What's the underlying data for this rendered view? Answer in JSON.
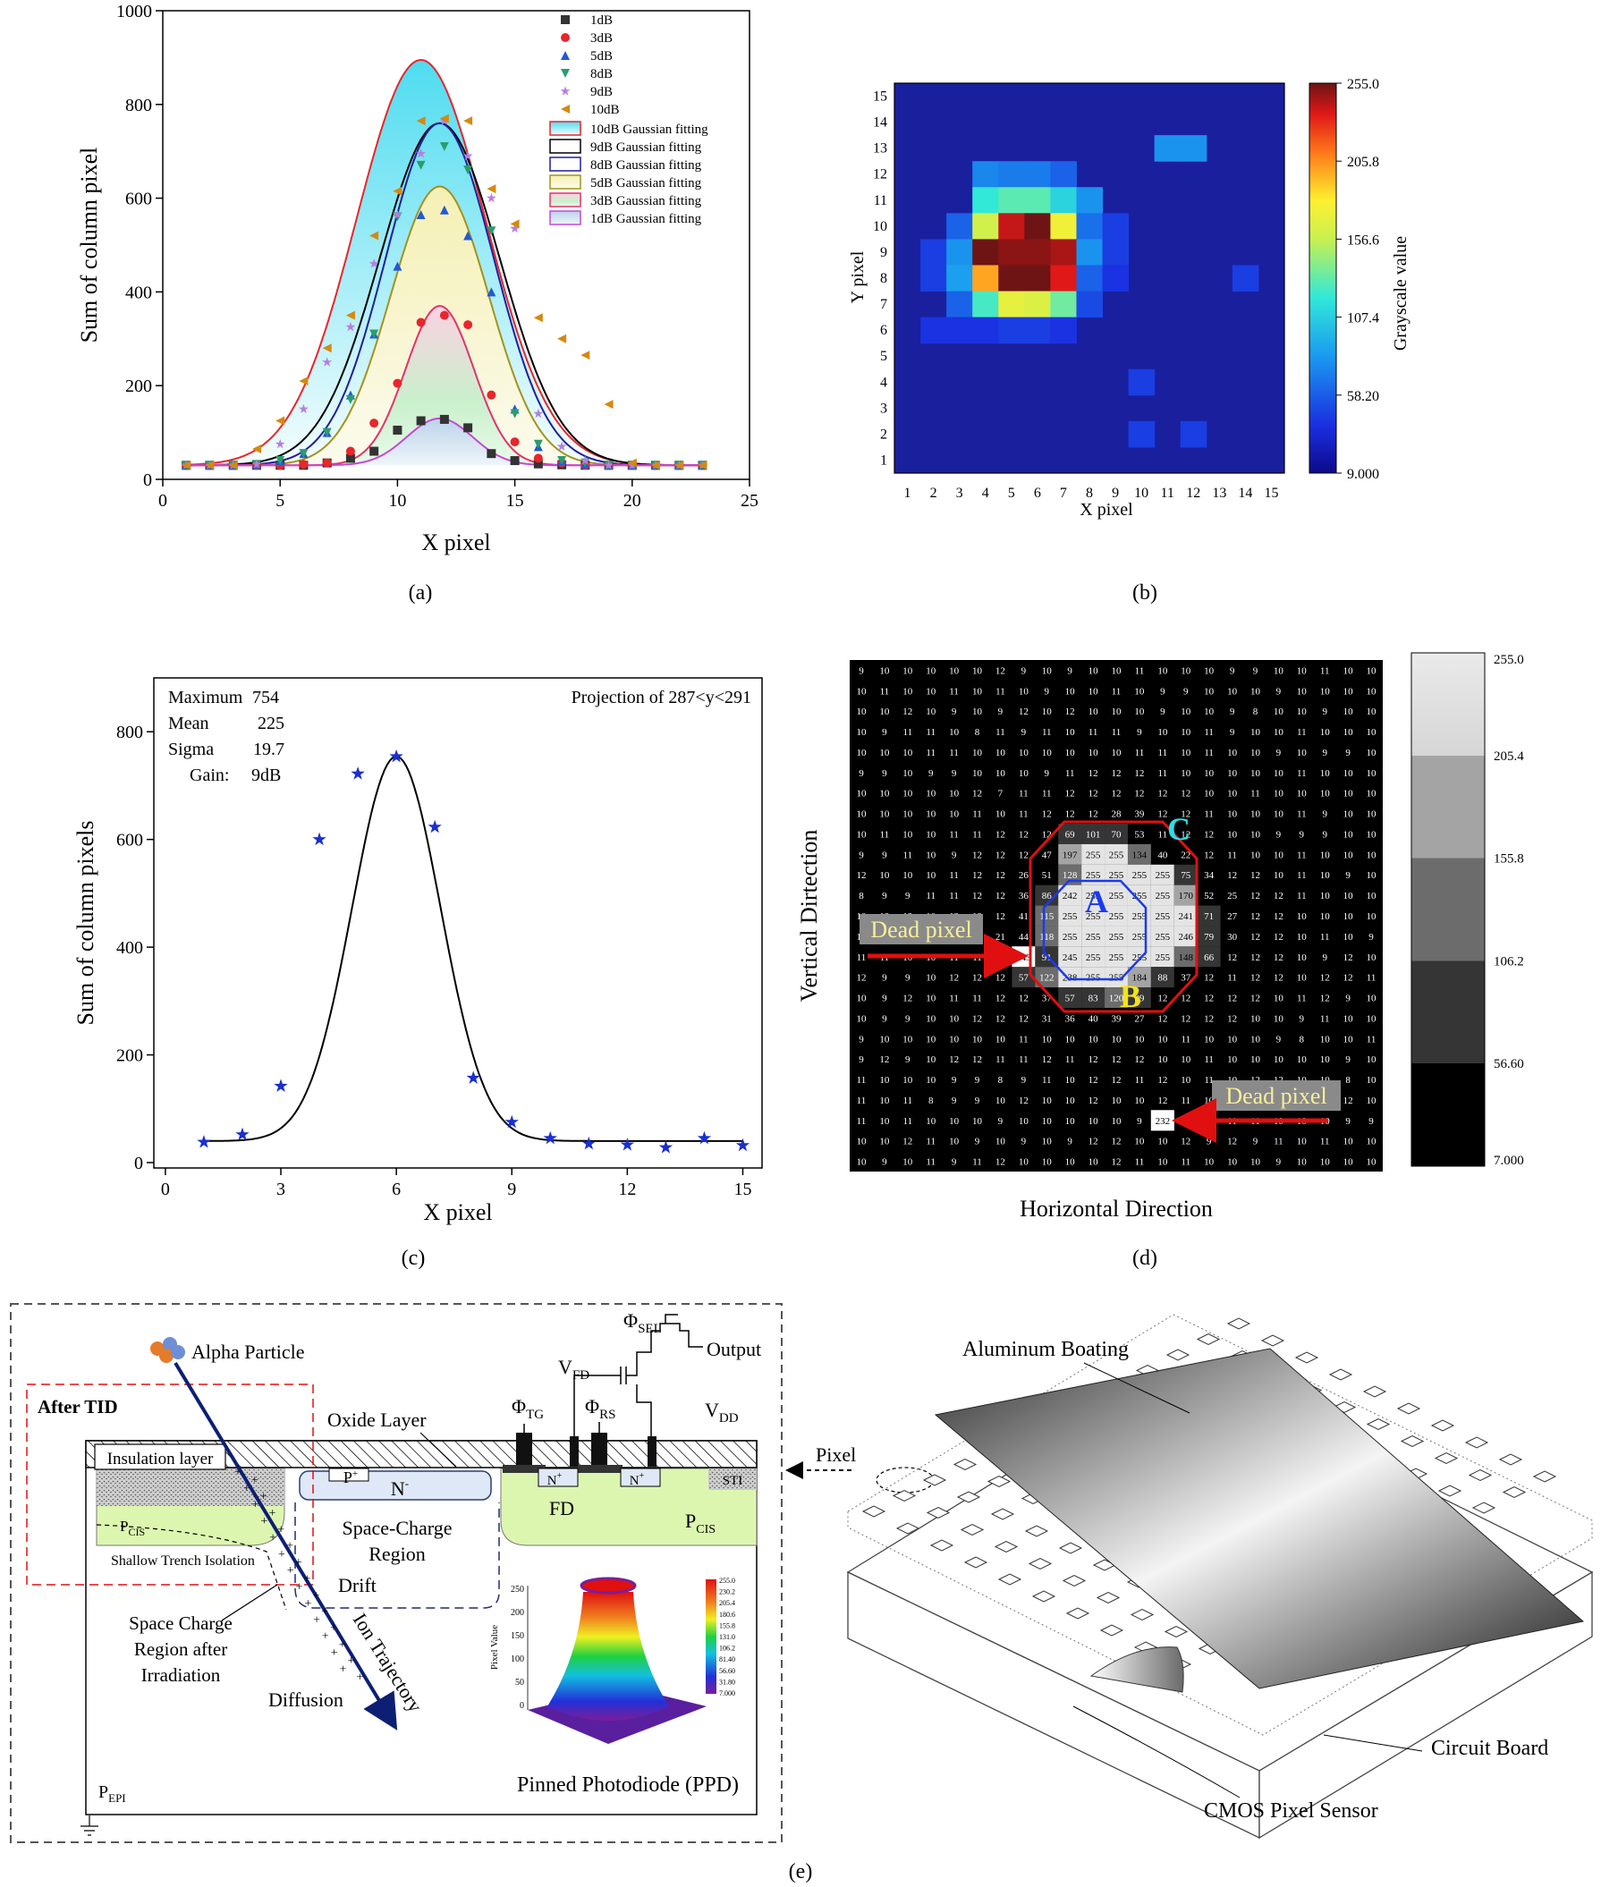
{
  "chart_data": [
    {
      "type": "scatter",
      "panel": "(a)",
      "xlabel": "X pixel",
      "ylabel": "Sum of column pixel",
      "xlim": [
        0,
        25
      ],
      "ylim": [
        0,
        1000
      ],
      "xticks": [
        "0",
        "5",
        "10",
        "15",
        "20",
        "25"
      ],
      "yticks": [
        "0",
        "200",
        "400",
        "600",
        "800",
        "1000"
      ],
      "legend_position": "top-right",
      "series": [
        {
          "name": "1dB",
          "color": "#333333",
          "marker": "square",
          "x": [
            1,
            2,
            3,
            4,
            5,
            6,
            7,
            8,
            9,
            10,
            11,
            12,
            13,
            14,
            15,
            16,
            17,
            18,
            19,
            20,
            21,
            22,
            23
          ],
          "values": [
            30,
            30,
            30,
            30,
            30,
            30,
            35,
            45,
            60,
            105,
            125,
            128,
            110,
            55,
            40,
            33,
            31,
            30,
            30,
            30,
            30,
            30,
            30
          ]
        },
        {
          "name": "3dB",
          "color": "#e8262b",
          "marker": "circle",
          "x": [
            1,
            2,
            3,
            4,
            5,
            6,
            7,
            8,
            9,
            10,
            11,
            12,
            13,
            14,
            15,
            16,
            17,
            18,
            19,
            20,
            21,
            22,
            23
          ],
          "values": [
            30,
            30,
            30,
            30,
            30,
            32,
            35,
            60,
            120,
            205,
            335,
            350,
            330,
            180,
            80,
            45,
            35,
            30,
            30,
            30,
            30,
            30,
            30
          ]
        },
        {
          "name": "5dB",
          "color": "#2159d6",
          "marker": "triangle-up",
          "x": [
            1,
            2,
            3,
            4,
            5,
            6,
            7,
            8,
            9,
            10,
            11,
            12,
            13,
            14,
            15,
            16,
            17,
            18,
            19,
            20,
            21,
            22,
            23
          ],
          "values": [
            30,
            30,
            30,
            32,
            40,
            55,
            100,
            180,
            310,
            455,
            565,
            575,
            520,
            400,
            150,
            70,
            40,
            33,
            30,
            30,
            30,
            30,
            30
          ]
        },
        {
          "name": "8dB",
          "color": "#2a9d6e",
          "marker": "triangle-down",
          "x": [
            1,
            2,
            3,
            4,
            5,
            6,
            7,
            8,
            9,
            10,
            11,
            12,
            13,
            14,
            15,
            16,
            17,
            18,
            19,
            20,
            21,
            22,
            23
          ],
          "values": [
            30,
            30,
            30,
            32,
            40,
            55,
            100,
            170,
            310,
            560,
            670,
            710,
            660,
            530,
            140,
            75,
            40,
            35,
            30,
            30,
            30,
            30,
            30
          ]
        },
        {
          "name": "9dB",
          "color": "#b77ee0",
          "marker": "star",
          "x": [
            1,
            2,
            3,
            4,
            5,
            6,
            7,
            8,
            9,
            10,
            11,
            12,
            13,
            14,
            15,
            16,
            17,
            18,
            19,
            20,
            21,
            22,
            23
          ],
          "values": [
            30,
            30,
            30,
            32,
            75,
            150,
            250,
            325,
            460,
            565,
            695,
            765,
            690,
            600,
            535,
            140,
            70,
            40,
            30,
            30,
            30,
            30,
            30
          ]
        },
        {
          "name": "10dB",
          "color": "#d6890d",
          "marker": "triangle-left",
          "x": [
            1,
            2,
            3,
            4,
            5,
            6,
            7,
            8,
            9,
            10,
            11,
            12,
            13,
            14,
            15,
            16,
            17,
            18,
            19,
            20,
            21,
            22,
            23
          ],
          "values": [
            30,
            30,
            30,
            65,
            125,
            210,
            280,
            350,
            520,
            615,
            765,
            770,
            765,
            620,
            545,
            345,
            300,
            265,
            160,
            35,
            30,
            30,
            30
          ]
        }
      ],
      "fits": [
        {
          "name": "10dB Gaussian fitting",
          "amplitude": 865,
          "center": 11,
          "sigma": 2.75,
          "baseline": 30,
          "line": "#e8262b",
          "fill": "#5fe1f0"
        },
        {
          "name": "9dB Gaussian fitting",
          "amplitude": 730,
          "center": 11.8,
          "sigma": 2.55,
          "baseline": 30,
          "line": "#000000",
          "fill": "#ffffff"
        },
        {
          "name": "8dB Gaussian fitting",
          "amplitude": 730,
          "center": 11.8,
          "sigma": 2.3,
          "baseline": 30,
          "line": "#1f1f9c",
          "fill": "#ffffff"
        },
        {
          "name": "5dB Gaussian fitting",
          "amplitude": 595,
          "center": 11.8,
          "sigma": 2.1,
          "baseline": 30,
          "line": "#a4931c",
          "fill": "#f4f0c0"
        },
        {
          "name": "3dB Gaussian fitting",
          "amplitude": 340,
          "center": 11.8,
          "sigma": 1.45,
          "baseline": 30,
          "line": "#e2336c",
          "fill": "#d8f5d8"
        },
        {
          "name": "1dB Gaussian fitting",
          "amplitude": 100,
          "center": 11.8,
          "sigma": 1.4,
          "baseline": 30,
          "line": "#c548d8",
          "fill": "#cde2f0"
        }
      ]
    },
    {
      "type": "heatmap",
      "panel": "(b)",
      "xlabel": "X pixel",
      "ylabel": "Y pixel",
      "xticks": [
        "1",
        "2",
        "3",
        "4",
        "5",
        "6",
        "7",
        "8",
        "9",
        "10",
        "11",
        "12",
        "13",
        "14",
        "15"
      ],
      "yticks": [
        "1",
        "2",
        "3",
        "4",
        "5",
        "6",
        "7",
        "8",
        "9",
        "10",
        "11",
        "12",
        "13",
        "14",
        "15"
      ],
      "colorbar_label": "Grayscale value",
      "colorbar_ticks": [
        "9.000",
        "58.20",
        "107.4",
        "156.6",
        "205.8",
        "255.0"
      ],
      "range": [
        9,
        255
      ],
      "cells": [
        [
          11,
          13,
          80
        ],
        [
          12,
          13,
          80
        ],
        [
          4,
          12,
          75
        ],
        [
          5,
          12,
          70
        ],
        [
          6,
          12,
          70
        ],
        [
          7,
          12,
          60
        ],
        [
          4,
          11,
          120
        ],
        [
          5,
          11,
          130
        ],
        [
          6,
          11,
          130
        ],
        [
          7,
          11,
          110
        ],
        [
          8,
          11,
          80
        ],
        [
          3,
          10,
          60
        ],
        [
          4,
          10,
          160
        ],
        [
          5,
          10,
          240
        ],
        [
          6,
          10,
          255
        ],
        [
          7,
          10,
          175
        ],
        [
          8,
          10,
          65
        ],
        [
          9,
          10,
          45
        ],
        [
          2,
          9,
          45
        ],
        [
          3,
          9,
          80
        ],
        [
          4,
          9,
          255
        ],
        [
          5,
          9,
          250
        ],
        [
          6,
          9,
          250
        ],
        [
          7,
          9,
          245
        ],
        [
          8,
          9,
          80
        ],
        [
          9,
          9,
          45
        ],
        [
          2,
          8,
          45
        ],
        [
          3,
          8,
          85
        ],
        [
          4,
          8,
          200
        ],
        [
          5,
          8,
          255
        ],
        [
          6,
          8,
          255
        ],
        [
          7,
          8,
          235
        ],
        [
          8,
          8,
          60
        ],
        [
          9,
          8,
          40
        ],
        [
          14,
          8,
          45
        ],
        [
          3,
          7,
          60
        ],
        [
          4,
          7,
          125
        ],
        [
          5,
          7,
          170
        ],
        [
          6,
          7,
          165
        ],
        [
          7,
          7,
          135
        ],
        [
          8,
          7,
          50
        ],
        [
          2,
          6,
          40
        ],
        [
          3,
          6,
          40
        ],
        [
          4,
          6,
          40
        ],
        [
          5,
          6,
          45
        ],
        [
          6,
          6,
          45
        ],
        [
          7,
          6,
          40
        ],
        [
          10,
          4,
          45
        ],
        [
          10,
          2,
          45
        ],
        [
          12,
          2,
          45
        ]
      ]
    },
    {
      "type": "scatter",
      "panel": "(c)",
      "xlabel": "X pixel",
      "ylabel": "Sum of column pixels",
      "xlim": [
        -0.3,
        15.5
      ],
      "ylim": [
        -10,
        900
      ],
      "xticks": [
        "0",
        "3",
        "6",
        "9",
        "12",
        "15"
      ],
      "yticks": [
        "0",
        "200",
        "400",
        "600",
        "800"
      ],
      "x": [
        1,
        2,
        3,
        4,
        5,
        6,
        7,
        8,
        9,
        10,
        11,
        12,
        13,
        14,
        15
      ],
      "values": [
        38,
        52,
        142,
        600,
        722,
        754,
        623,
        157,
        75,
        45,
        35,
        33,
        28,
        45,
        32
      ],
      "fit": {
        "amplitude": 714,
        "center": 6,
        "sigma": 1.15,
        "baseline": 40
      },
      "stats": {
        "max_label": "Maximum",
        "max": "754",
        "mean_label": "Mean",
        "mean": "225",
        "sigma_label": "Sigma",
        "sigma": "19.7",
        "gain_label": "Gain:",
        "gain": "9dB"
      },
      "annotation": "Projection of 287<y<291"
    },
    {
      "type": "table",
      "panel": "(d)",
      "xlabel": "Horizontal Direction",
      "ylabel": "Vertical Dirtection",
      "colorbar_ticks": [
        "7.000",
        "56.60",
        "106.2",
        "155.8",
        "205.4",
        "255.0"
      ],
      "labels": {
        "a": "A",
        "b": "B",
        "c": "C",
        "dead1": "Dead pixel",
        "dead2": "Dead pixel"
      },
      "rows": [
        "9 10 10 10 10 10 12 9 10 9 10 10 11 10 10 10 9 9 10 10 11 10 10",
        "10 11 10 10 11 10 11 10 9 10 10 11 10 9 9 10 10 10 9 10 10 10 10",
        "10 10 12 10 9 10 9 12 10 12 10 10 10 9 10 10 9 8 10 10 9 10 10",
        "10 9 11 11 10 8 11 9 11 10 11 11 9 10 10 11 9 10 10 11 10 10 10",
        "10 10 10 11 11 10 10 10 10 10 10 10 11 11 10 11 10 10 9 10 9 9 10",
        "9 9 10 9 9 10 10 10 9 11 12 12 12 11 10 10 10 10 10 11 10 10 10",
        "10 10 10 10 10 12 7 11 11 12 12 12 12 12 12 10 10 11 10 10 10 10 10",
        "10 10 10 10 10 11 10 11 12 12 12 28 39 12 12 11 10 10 10 11 9 10 10",
        "10 11 10 10 11 11 12 12 12 69 101 70 53 11 12 12 10 10 9 9 9 10 10",
        "9 9 11 10 9 12 12 12 47 197 255 255 134 40 22 12 11 10 10 11 10 10 10",
        "12 10 10 10 11 12 12 26 51 128 255 255 255 255 75 34 12 12 10 11 10 9 10",
        "8 9 9 11 11 12 12 36 86 242 255 255 255 255 170 52 25 12 12 11 10 10 10",
        "10 12 12 10 12 12 12 41 115 255 255 255 255 255 241 71 27 12 12 10 10 10 10",
        "10 10 12 10 10 11 21 44 118 255 255 255 255 255 246 79 30 12 12 10 11 10 9",
        "11 11 10 10 11 11 18 243 91 245 255 255 255 255 148 66 12 12 12 10 9 12 10",
        "12 9 9 10 12 12 12 57 122 238 255 255 184 88 37 12 11 12 12 10 12 12 11",
        "10 9 12 10 11 11 12 12 37 57 83 120 99 12 12 12 12 12 10 11 12 9 10",
        "10 9 9 10 10 12 12 12 31 36 40 39 27 12 12 12 12 10 10 9 11 10 10",
        "9 10 10 10 10 10 10 11 10 10 10 10 10 10 11 10 10 10 9 8 10 10 11",
        "9 12 9 10 12 12 11 11 12 11 12 12 12 10 10 11 10 10 10 10 10 9 10",
        "11 10 10 10 9 9 8 9 11 10 12 12 11 12 10 11 10 12 12 10 10 8 10",
        "11 10 11 8 9 9 10 12 10 10 12 10 10 12 11 10 10 10 12 11 10 12 10",
        "11 10 11 10 10 10 9 10 10 10 10 10 9 232 10 12 11 11 10 10 10 9 9",
        "10 10 12 11 10 9 10 9 10 9 12 12 10 10 12 9 12 9 11 10 11 10 10",
        "10 9 10 11 9 11 12 10 10 10 10 12 11 10 11 10 10 10 9 10 10 10 10"
      ]
    }
  ],
  "legend_a": {
    "points": [
      "1dB",
      "3dB",
      "5dB",
      "8dB",
      "9dB",
      "10dB"
    ],
    "fits": [
      "10dB Gaussian fitting",
      "9dB Gaussian fitting",
      "8dB Gaussian fitting",
      "5dB Gaussian fitting",
      "3dB Gaussian fitting",
      "1dB Gaussian fitting"
    ]
  },
  "captions": {
    "a": "(a)",
    "b": "(b)",
    "c": "(c)",
    "d": "(d)",
    "e": "(e)"
  },
  "diagram": {
    "alpha": "Alpha Particle",
    "after_tid": "After TID",
    "insulation": "Insulation layer",
    "oxide": "Oxide Layer",
    "phi_tg": "Φ",
    "phi_tg_sub": "TG",
    "phi_rs": "Φ",
    "phi_rs_sub": "RS",
    "vfd": "V",
    "vfd_sub": "FD",
    "phi_sel": "Φ",
    "phi_sel_sub": "SEL",
    "output": "Output",
    "vdd": "V",
    "vdd_sub": "DD",
    "p_plus": "P",
    "p_sup": "+",
    "n_minus": "N",
    "n_sup": "-",
    "fd": "FD",
    "n_plus": "N",
    "n_plus_sup": "+",
    "sti": "STI",
    "pcis": "P",
    "pcis_sub": "CIS",
    "sti_full": "Shallow Trench Isolation",
    "space_charge": "Space-Charge",
    "region": "Region",
    "drift": "Drift",
    "sc_after_1": "Space Charge",
    "sc_after_2": "Region after",
    "sc_after_3": "Irradiation",
    "ion": "Ion Trajectory",
    "diffusion": "Diffusion",
    "pepi": "P",
    "pepi_sub": "EPI",
    "ppd": "Pinned Photodiode (PPD)",
    "inset_ticks": [
      "255.0",
      "230.2",
      "205.4",
      "180.6",
      "155.8",
      "131.0",
      "106.2",
      "81.40",
      "56.60",
      "31.80",
      "7.000"
    ],
    "inset_axis": [
      "250",
      "200",
      "150",
      "100",
      "50",
      "0"
    ],
    "inset_zlabel": "Pixel Value",
    "pixel": "Pixel",
    "aluminum": "Aluminum Boating",
    "circuit": "Circuit Board",
    "cmos": "CMOS Pixel Sensor"
  }
}
